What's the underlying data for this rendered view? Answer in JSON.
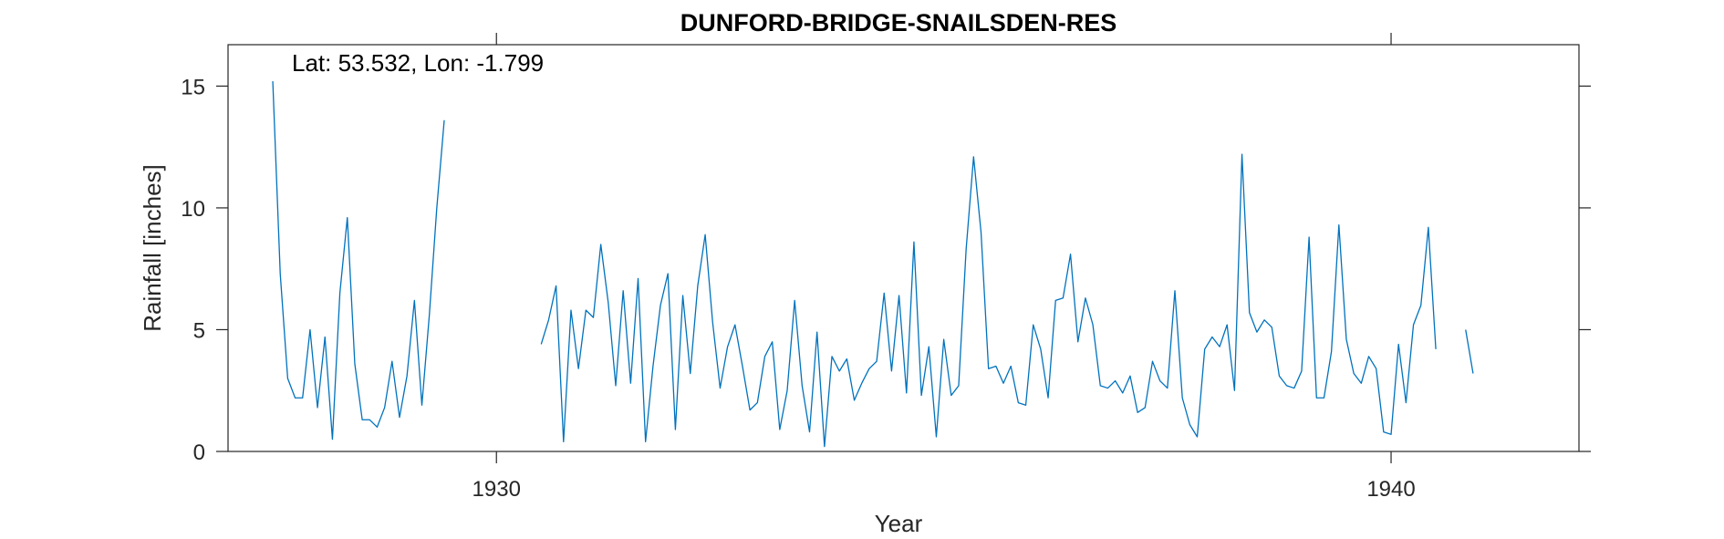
{
  "chart_data": {
    "type": "line",
    "title": "DUNFORD-BRIDGE-SNAILSDEN-RES",
    "annotation": "Lat: 53.532, Lon: -1.799",
    "xlabel": "Year",
    "ylabel": "Rainfall [inches]",
    "xlim": [
      1927.0,
      1942.1
    ],
    "ylim": [
      0,
      16.7
    ],
    "x_ticks": [
      1930,
      1940
    ],
    "x_tick_labels": [
      "1930",
      "1940"
    ],
    "y_ticks": [
      0,
      5,
      10,
      15
    ],
    "y_tick_labels": [
      "0",
      "5",
      "10",
      "15"
    ],
    "grid": false,
    "line_color": "#0072BD",
    "series": [
      {
        "x_start": 1927.5,
        "x_step": 0.083333,
        "values": [
          15.2,
          7.3,
          3.0,
          2.2,
          2.2,
          5.0,
          1.8,
          4.7,
          0.5,
          6.5,
          9.6,
          3.6,
          1.3,
          1.3,
          1.0,
          1.8,
          3.7,
          1.4,
          3.1,
          6.2,
          1.9,
          5.6,
          10.0,
          13.6,
          null,
          null,
          null,
          null,
          null,
          null,
          null,
          null,
          null,
          null,
          null,
          null,
          4.4,
          5.4,
          6.8,
          0.4,
          5.8,
          3.4,
          5.8,
          5.5,
          8.5,
          6.1,
          2.7,
          6.6,
          2.8,
          7.1,
          0.4,
          3.5,
          6.0,
          7.3,
          0.9,
          6.4,
          3.2,
          6.8,
          8.9,
          5.3,
          2.6,
          4.3,
          5.2,
          3.5,
          1.7,
          2.0,
          3.9,
          4.5,
          0.9,
          2.5,
          6.2,
          2.7,
          0.8,
          4.9,
          0.2,
          3.9,
          3.3,
          3.8,
          2.1,
          2.8,
          3.4,
          3.7,
          6.5,
          3.3,
          6.4,
          2.4,
          8.6,
          2.3,
          4.3,
          0.6,
          4.6,
          2.3,
          2.7,
          8.3,
          12.1,
          9.0,
          3.4,
          3.5,
          2.8,
          3.5,
          2.0,
          1.9,
          5.2,
          4.2,
          2.2,
          6.2,
          6.3,
          8.1,
          4.5,
          6.3,
          5.2,
          2.7,
          2.6,
          2.9,
          2.4,
          3.1,
          1.6,
          1.8,
          3.7,
          2.9,
          2.6,
          6.6,
          2.2,
          1.1,
          0.6,
          4.2,
          4.7,
          4.3,
          5.2,
          2.5,
          12.2,
          5.7,
          4.9,
          5.4,
          5.1,
          3.1,
          2.7,
          2.6,
          3.3,
          8.8,
          2.2,
          2.2,
          4.1,
          9.3,
          4.6,
          3.2,
          2.8,
          3.9,
          3.4,
          0.8,
          0.7,
          4.4,
          2.0,
          5.2,
          6.0,
          9.2,
          4.2,
          null,
          null,
          null,
          5.0,
          3.2
        ]
      }
    ]
  }
}
